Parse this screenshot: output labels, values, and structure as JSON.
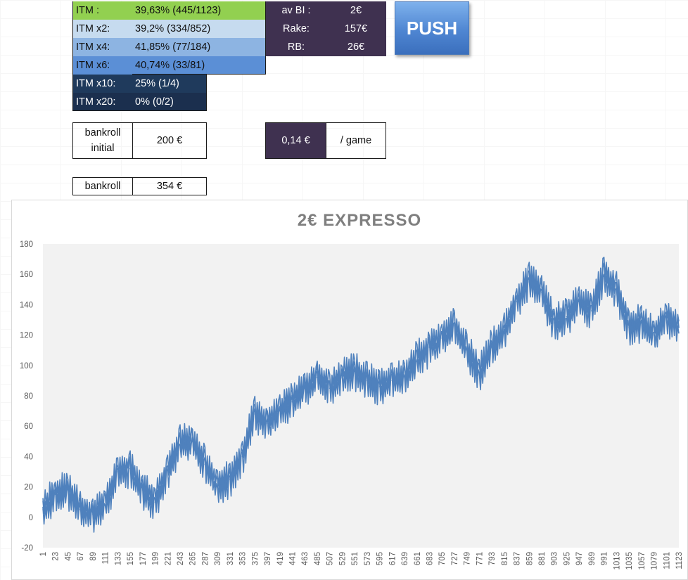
{
  "stats": {
    "itm_rows": [
      {
        "label": "ITM :",
        "value": "39,63% (445/1123)",
        "color": "#92d050"
      },
      {
        "label": "ITM x2:",
        "value": "39,2% (334/852)",
        "color": "#c6dbef"
      },
      {
        "label": "ITM x4:",
        "value": "41,85% (77/184)",
        "color": "#8db4e2"
      },
      {
        "label": "ITM x6:",
        "value": "40,74% (33/81)",
        "color": "#5b8fd6"
      },
      {
        "label": "ITM x10:",
        "value": "25% (1/4)",
        "color": "#1f3a5c"
      },
      {
        "label": "ITM x20:",
        "value": "0% (0/2)",
        "color": "#1b2f4e"
      }
    ],
    "buyin": {
      "av_bi_label": "av BI :",
      "av_bi_value": "2€",
      "rake_label": "Rake:",
      "rake_value": "157€",
      "rb_label": "RB:",
      "rb_value": "26€",
      "color": "#3f3150"
    },
    "push_button": "PUSH",
    "bankroll_initial_label_line1": "bankroll",
    "bankroll_initial_label_line2": "initial",
    "bankroll_initial_value": "200 €",
    "per_game_value": "0,14 €",
    "per_game_label": "/ game",
    "bankroll_label": "bankroll",
    "bankroll_value": "354 €"
  },
  "chart_data": {
    "type": "line",
    "title": "2€ EXPRESSO",
    "xlabel": "",
    "ylabel": "",
    "ylim": [
      -20,
      180
    ],
    "yticks": [
      -20,
      0,
      20,
      40,
      60,
      80,
      100,
      120,
      140,
      160,
      180
    ],
    "xlim": [
      1,
      1123
    ],
    "grid": false,
    "legend": "none",
    "line_color": "#4f81bd",
    "plot_bg": "#f2f2f2",
    "x_tick_labels": [
      "1",
      "23",
      "45",
      "67",
      "89",
      "111",
      "133",
      "155",
      "177",
      "199",
      "221",
      "243",
      "265",
      "287",
      "309",
      "331",
      "353",
      "375",
      "397",
      "419",
      "441",
      "463",
      "485",
      "507",
      "529",
      "551",
      "573",
      "595",
      "617",
      "639",
      "661",
      "683",
      "705",
      "727",
      "749",
      "771",
      "793",
      "815",
      "837",
      "859",
      "881",
      "903",
      "925",
      "947",
      "969",
      "991",
      "1013",
      "1035",
      "1057",
      "1079",
      "1101",
      "1123"
    ],
    "x": [
      1,
      23,
      45,
      67,
      89,
      111,
      133,
      155,
      177,
      199,
      221,
      243,
      265,
      287,
      309,
      331,
      353,
      375,
      397,
      419,
      441,
      463,
      485,
      507,
      529,
      551,
      573,
      595,
      617,
      639,
      661,
      683,
      705,
      727,
      749,
      771,
      793,
      815,
      837,
      859,
      881,
      903,
      925,
      947,
      969,
      991,
      1013,
      1035,
      1057,
      1079,
      1101,
      1123
    ],
    "series": [
      {
        "values": [
          5,
          15,
          18,
          5,
          2,
          8,
          30,
          32,
          18,
          10,
          30,
          48,
          50,
          35,
          20,
          25,
          40,
          68,
          62,
          70,
          76,
          85,
          92,
          85,
          92,
          96,
          90,
          86,
          90,
          92,
          104,
          112,
          118,
          126,
          110,
          94,
          112,
          122,
          142,
          155,
          148,
          128,
          132,
          142,
          136,
          160,
          150,
          125,
          128,
          120,
          132,
          125
        ]
      }
    ]
  }
}
